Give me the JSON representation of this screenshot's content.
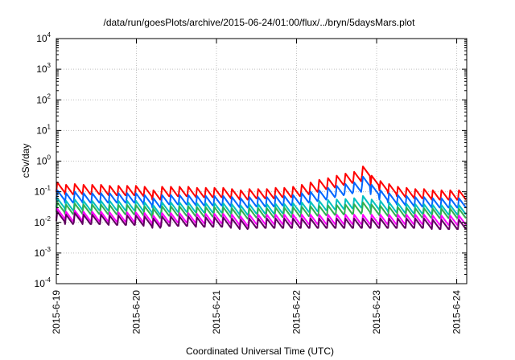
{
  "chart_data": {
    "type": "line",
    "title": "/data/run/goesPlots/archive/2015-06-24/01:00/flux/../bryn/5daysMars.plot",
    "xlabel": "Coordinated Universal Time (UTC)",
    "ylabel": "cSv/day",
    "yscale": "log",
    "ylim": [
      0.0001,
      10000
    ],
    "y_ticks": [
      {
        "base": "10",
        "exp": "-4"
      },
      {
        "base": "10",
        "exp": "-3"
      },
      {
        "base": "10",
        "exp": "-2"
      },
      {
        "base": "10",
        "exp": "-1"
      },
      {
        "base": "10",
        "exp": "0"
      },
      {
        "base": "10",
        "exp": "1"
      },
      {
        "base": "10",
        "exp": "2"
      },
      {
        "base": "10",
        "exp": "3"
      },
      {
        "base": "10",
        "exp": "4"
      }
    ],
    "xlim": [
      "2015-06-19 00:00",
      "2015-06-24 03:00"
    ],
    "x_ticks": [
      "2015-6-19",
      "2015-6-20",
      "2015-6-21",
      "2015-6-22",
      "2015-6-23",
      "2015-6-24"
    ],
    "grid": true,
    "legend": "none",
    "series": [
      {
        "color": "#ff0000",
        "values": [
          0.18,
          0.15,
          0.16,
          0.15,
          0.15,
          0.15,
          0.14,
          0.14,
          0.14,
          0.14,
          0.13,
          0.1,
          0.13,
          0.13,
          0.13,
          0.13,
          0.12,
          0.12,
          0.12,
          0.12,
          0.11,
          0.1,
          0.11,
          0.11,
          0.11,
          0.12,
          0.12,
          0.13,
          0.15,
          0.18,
          0.22,
          0.25,
          0.3,
          0.35,
          0.4,
          0.6,
          0.3,
          0.2,
          0.16,
          0.13,
          0.12,
          0.11,
          0.11,
          0.1,
          0.1,
          0.1,
          0.1
        ]
      },
      {
        "color": "#0066ff",
        "values": [
          0.1,
          0.08,
          0.09,
          0.08,
          0.08,
          0.08,
          0.08,
          0.08,
          0.08,
          0.08,
          0.07,
          0.055,
          0.07,
          0.07,
          0.07,
          0.07,
          0.065,
          0.065,
          0.065,
          0.065,
          0.06,
          0.055,
          0.06,
          0.06,
          0.06,
          0.065,
          0.065,
          0.07,
          0.08,
          0.09,
          0.1,
          0.12,
          0.14,
          0.16,
          0.18,
          0.28,
          0.15,
          0.1,
          0.08,
          0.07,
          0.065,
          0.06,
          0.06,
          0.055,
          0.055,
          0.055,
          0.055
        ]
      },
      {
        "color": "#00c0c0",
        "values": [
          0.055,
          0.045,
          0.05,
          0.045,
          0.045,
          0.045,
          0.045,
          0.045,
          0.045,
          0.045,
          0.04,
          0.032,
          0.04,
          0.04,
          0.04,
          0.04,
          0.038,
          0.038,
          0.038,
          0.038,
          0.035,
          0.032,
          0.035,
          0.035,
          0.035,
          0.036,
          0.036,
          0.038,
          0.04,
          0.042,
          0.045,
          0.048,
          0.05,
          0.052,
          0.055,
          0.065,
          0.05,
          0.045,
          0.04,
          0.038,
          0.036,
          0.035,
          0.035,
          0.033,
          0.033,
          0.033,
          0.033
        ]
      },
      {
        "color": "#30b050",
        "values": [
          0.04,
          0.034,
          0.037,
          0.034,
          0.034,
          0.034,
          0.033,
          0.033,
          0.033,
          0.033,
          0.03,
          0.025,
          0.03,
          0.03,
          0.03,
          0.03,
          0.028,
          0.028,
          0.028,
          0.028,
          0.026,
          0.024,
          0.026,
          0.026,
          0.026,
          0.027,
          0.027,
          0.028,
          0.029,
          0.03,
          0.031,
          0.032,
          0.033,
          0.034,
          0.035,
          0.04,
          0.034,
          0.031,
          0.029,
          0.028,
          0.027,
          0.026,
          0.026,
          0.025,
          0.025,
          0.025,
          0.025
        ]
      },
      {
        "color": "#ff00ff",
        "values": [
          0.025,
          0.02,
          0.022,
          0.02,
          0.02,
          0.02,
          0.019,
          0.019,
          0.019,
          0.019,
          0.018,
          0.015,
          0.018,
          0.018,
          0.018,
          0.018,
          0.017,
          0.017,
          0.017,
          0.017,
          0.016,
          0.014,
          0.016,
          0.016,
          0.016,
          0.016,
          0.016,
          0.016,
          0.016,
          0.016,
          0.016,
          0.016,
          0.016,
          0.016,
          0.016,
          0.016,
          0.016,
          0.016,
          0.016,
          0.016,
          0.016,
          0.016,
          0.016,
          0.015,
          0.015,
          0.015,
          0.015
        ]
      },
      {
        "color": "#600060",
        "values": [
          0.02,
          0.016,
          0.018,
          0.016,
          0.016,
          0.016,
          0.015,
          0.015,
          0.015,
          0.015,
          0.014,
          0.012,
          0.014,
          0.014,
          0.014,
          0.014,
          0.013,
          0.013,
          0.013,
          0.013,
          0.012,
          0.011,
          0.012,
          0.012,
          0.012,
          0.012,
          0.012,
          0.012,
          0.012,
          0.012,
          0.012,
          0.012,
          0.012,
          0.012,
          0.012,
          0.012,
          0.012,
          0.012,
          0.012,
          0.012,
          0.012,
          0.012,
          0.012,
          0.011,
          0.011,
          0.011,
          0.011
        ]
      }
    ]
  }
}
